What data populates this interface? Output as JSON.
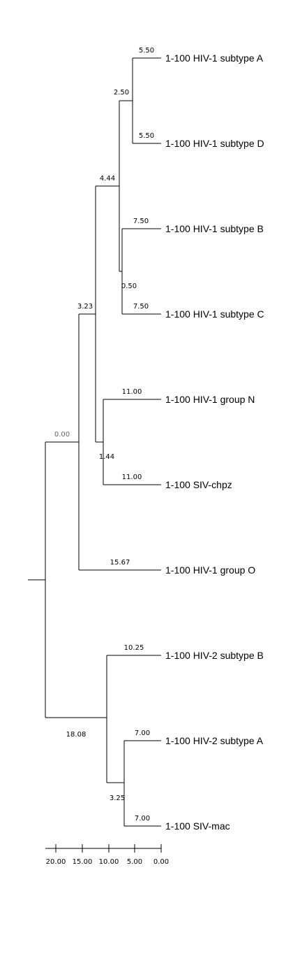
{
  "tree": {
    "root_length": "0.00",
    "leaves": [
      "1-100 HIV-1 subtype A",
      "1-100 HIV-1 subtype D",
      "1-100 HIV-1 subtype B",
      "1-100 HIV-1 subtype C",
      "1-100 HIV-1 group N",
      "1-100 SIV-chpz",
      "1-100 HIV-1 group O",
      "1-100 HIV-2 subtype B",
      "1-100 HIV-2 subtype A",
      "1-100 SIV-mac"
    ],
    "leaf_branch_lengths": [
      "5.50",
      "5.50",
      "7.50",
      "7.50",
      "11.00",
      "11.00",
      "15.67",
      "10.25",
      "7.00",
      "7.00"
    ],
    "internal_branch_lengths": {
      "subtype_A_D_clade": "2.50",
      "subtype_B_C_clade": "0.50",
      "subtypes_ABCD_clade": "4.44",
      "groupN_SIVchpz_clade": "1.44",
      "group_M_N_clade": "3.23",
      "hiv2_siv_clade": "18.08",
      "hiv2A_sivmac_clade": "3.25"
    }
  },
  "scale": {
    "ticks": [
      "20.00",
      "15.00",
      "10.00",
      "5.00",
      "0.00"
    ]
  }
}
